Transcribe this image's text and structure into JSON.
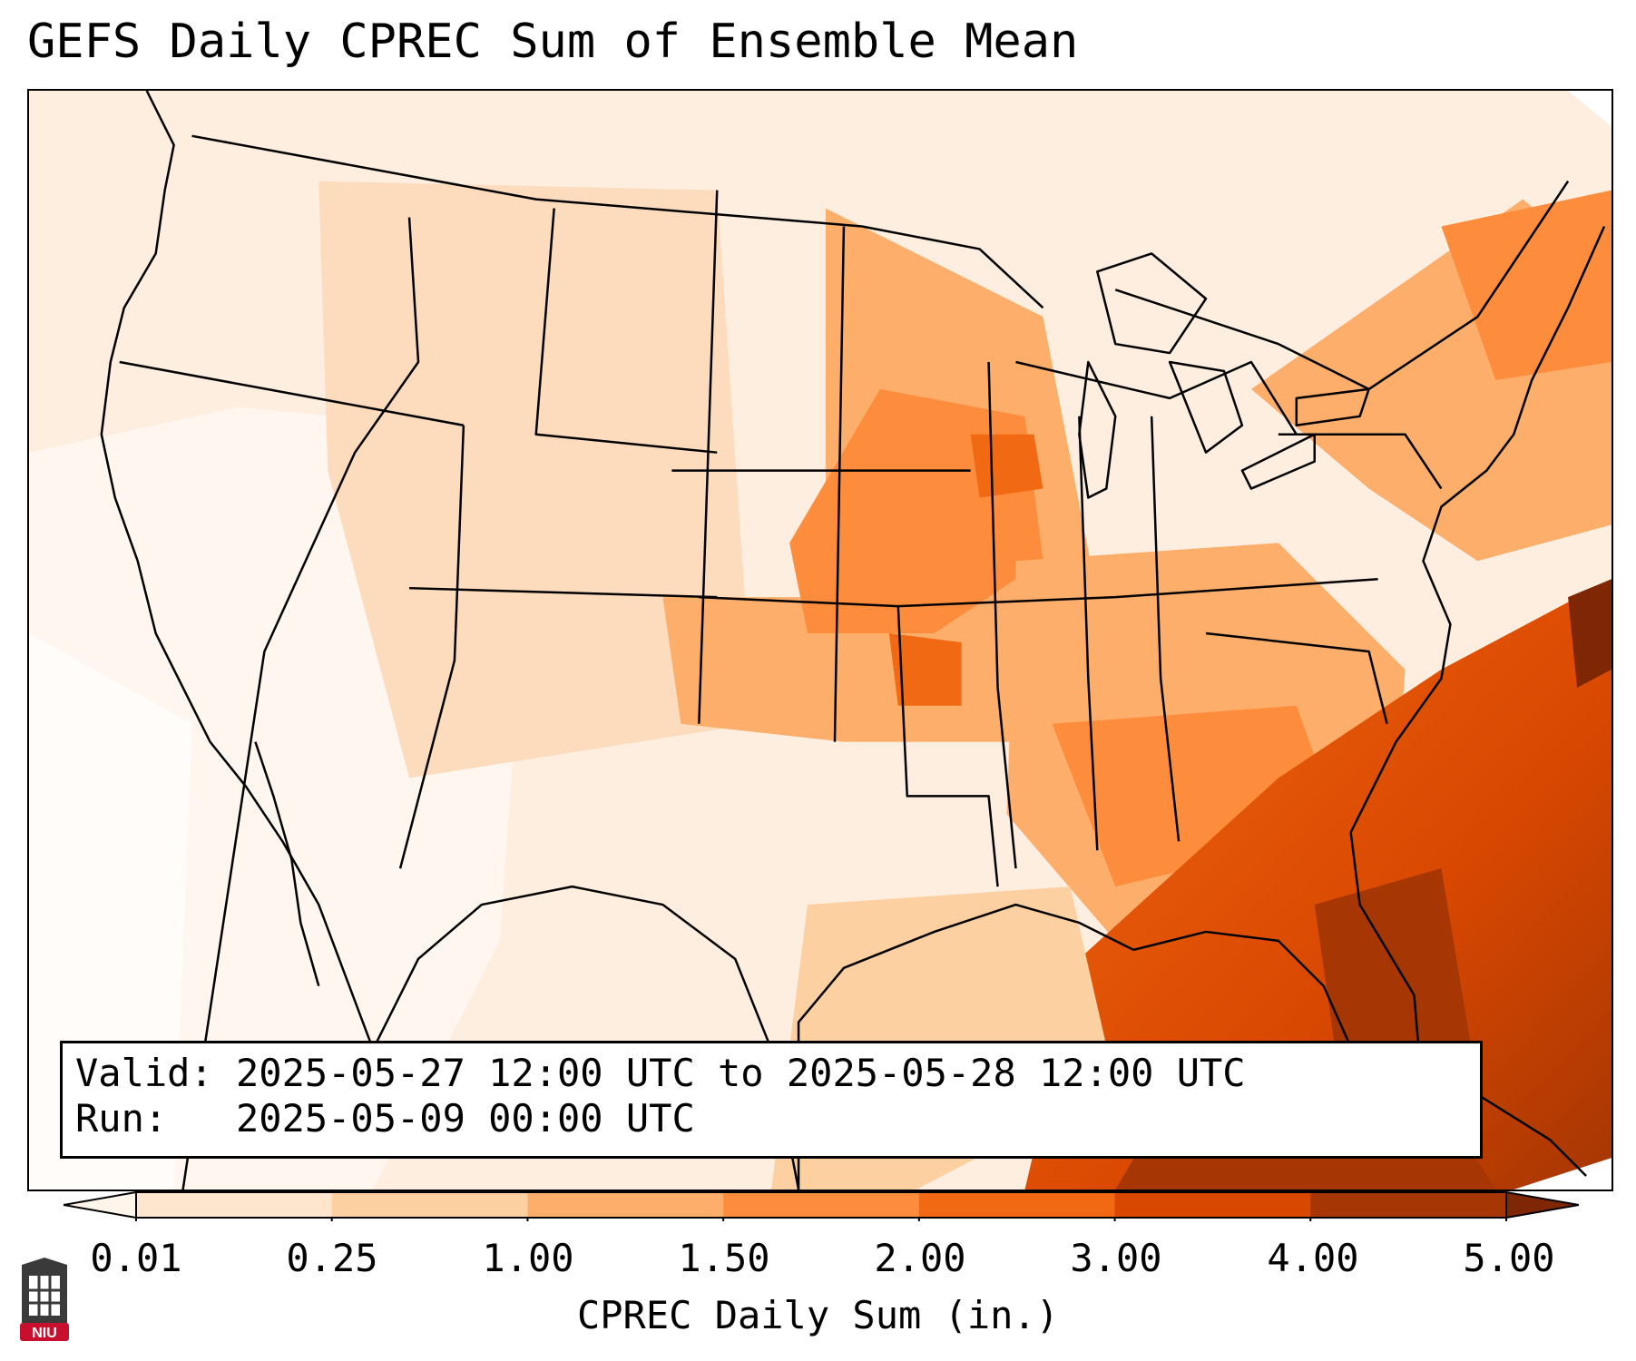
{
  "title": "GEFS Daily CPREC Sum of Ensemble Mean",
  "info": {
    "valid": "Valid: 2025-05-27 12:00 UTC to 2025-05-28 12:00 UTC",
    "run": "Run:   2025-05-09 00:00 UTC"
  },
  "colorbar": {
    "label": "CPREC Daily Sum (in.)",
    "ticks": [
      "0.01",
      "0.25",
      "1.00",
      "1.50",
      "2.00",
      "3.00",
      "4.00",
      "5.00"
    ],
    "colors": [
      "#fff5eb",
      "#fee6ce",
      "#fdd0a2",
      "#fdae6b",
      "#fd8d3c",
      "#f16913",
      "#d94801",
      "#a63603",
      "#7f2704"
    ]
  },
  "logo": {
    "text": "NIU",
    "color": "#c8102e"
  }
}
